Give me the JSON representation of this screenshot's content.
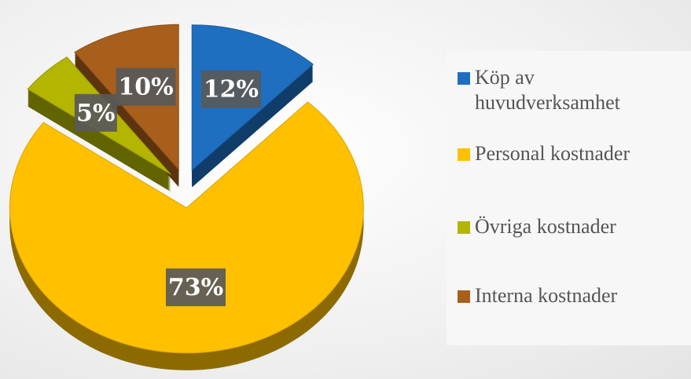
{
  "chart_data": {
    "type": "pie",
    "categories": [
      "Köp av huvudverksamhet",
      "Personal kostnader",
      "Övriga kostnader",
      "Interna kostnader"
    ],
    "values": [
      12,
      73,
      5,
      10
    ],
    "value_labels": [
      "12%",
      "73%",
      "5%",
      "10%"
    ],
    "colors": [
      "#1f6fc0",
      "#ffc000",
      "#b3b500",
      "#a85f1c"
    ],
    "legend": "right"
  }
}
